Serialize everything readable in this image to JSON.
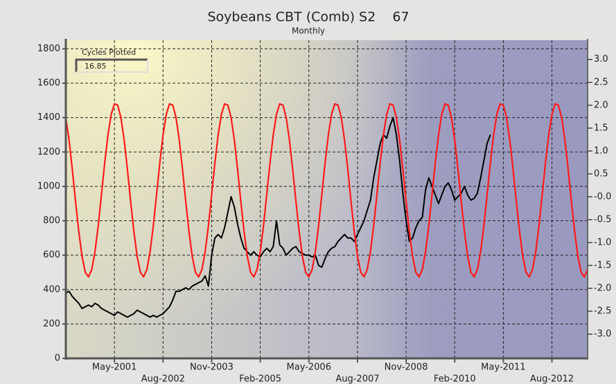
{
  "chart_data": {
    "type": "line",
    "title": "Soybeans CBT (Comb) S2    67",
    "subtitle": "Monthly",
    "cycles_box": {
      "label": "Cycles Plotted",
      "value": 16.85,
      "color": "#ff2020"
    },
    "grid": true,
    "xlim": [
      "2000-02",
      "2013-07"
    ],
    "xticks": [
      {
        "value": "2001-05",
        "label": "May-2001"
      },
      {
        "value": "2002-08",
        "label": "Aug-2002"
      },
      {
        "value": "2003-11",
        "label": "Nov-2003"
      },
      {
        "value": "2005-02",
        "label": "Feb-2005"
      },
      {
        "value": "2006-05",
        "label": "May-2006"
      },
      {
        "value": "2007-08",
        "label": "Aug-2007"
      },
      {
        "value": "2008-11",
        "label": "Nov-2008"
      },
      {
        "value": "2010-02",
        "label": "Feb-2010"
      },
      {
        "value": "2011-05",
        "label": "May-2011"
      },
      {
        "value": "2012-08",
        "label": "Aug-2012"
      }
    ],
    "ylim": [
      0,
      1850
    ],
    "yticks": [
      0,
      200,
      400,
      600,
      800,
      1000,
      1200,
      1400,
      1600,
      1800
    ],
    "y2lim": [
      -3.53,
      3.42
    ],
    "y2ticks": [
      {
        "value": 3,
        "label": "3.0"
      },
      2.5,
      {
        "value": 2,
        "label": "2.0"
      },
      1.5,
      {
        "value": 1,
        "label": "1.0"
      },
      0.5,
      {
        "value": 0,
        "label": "-0.0"
      },
      -0.5,
      {
        "value": -1,
        "label": "-1.0"
      },
      -1.5,
      {
        "value": -2,
        "label": "-2.0"
      },
      -2.5,
      {
        "value": -3,
        "label": "-3.0"
      }
    ],
    "x": [
      "2000-02",
      "2000-03",
      "2000-04",
      "2000-05",
      "2000-06",
      "2000-07",
      "2000-08",
      "2000-09",
      "2000-10",
      "2000-11",
      "2000-12",
      "2001-01",
      "2001-02",
      "2001-03",
      "2001-04",
      "2001-05",
      "2001-06",
      "2001-07",
      "2001-08",
      "2001-09",
      "2001-10",
      "2001-11",
      "2001-12",
      "2002-01",
      "2002-02",
      "2002-03",
      "2002-04",
      "2002-05",
      "2002-06",
      "2002-07",
      "2002-08",
      "2002-09",
      "2002-10",
      "2002-11",
      "2002-12",
      "2003-01",
      "2003-02",
      "2003-03",
      "2003-04",
      "2003-05",
      "2003-06",
      "2003-07",
      "2003-08",
      "2003-09",
      "2003-10",
      "2003-11",
      "2003-12",
      "2004-01",
      "2004-02",
      "2004-03",
      "2004-04",
      "2004-05",
      "2004-06",
      "2004-07",
      "2004-08",
      "2004-09",
      "2004-10",
      "2004-11",
      "2004-12",
      "2005-01",
      "2005-02",
      "2005-03",
      "2005-04",
      "2005-05",
      "2005-06",
      "2005-07",
      "2005-08",
      "2005-09",
      "2005-10",
      "2005-11",
      "2005-12",
      "2006-01",
      "2006-02",
      "2006-03",
      "2006-04",
      "2006-05",
      "2006-06",
      "2006-07",
      "2006-08",
      "2006-09",
      "2006-10",
      "2006-11",
      "2006-12",
      "2007-01",
      "2007-02",
      "2007-03",
      "2007-04",
      "2007-05",
      "2007-06",
      "2007-07",
      "2007-08",
      "2007-09",
      "2007-10",
      "2007-11",
      "2007-12",
      "2008-01",
      "2008-02",
      "2008-03",
      "2008-04",
      "2008-05",
      "2008-06",
      "2008-07",
      "2008-08",
      "2008-09",
      "2008-10",
      "2008-11",
      "2008-12",
      "2009-01",
      "2009-02",
      "2009-03",
      "2009-04",
      "2009-05",
      "2009-06",
      "2009-07",
      "2009-08",
      "2009-09",
      "2009-10",
      "2009-11",
      "2009-12",
      "2010-01",
      "2010-02",
      "2010-03",
      "2010-04",
      "2010-05",
      "2010-06",
      "2010-07",
      "2010-08",
      "2010-09",
      "2010-10",
      "2010-11",
      "2010-12",
      "2011-01",
      "2011-02",
      "2011-03",
      "2011-04",
      "2011-05",
      "2011-06",
      "2011-07",
      "2011-08",
      "2011-09",
      "2011-10",
      "2011-11",
      "2011-12",
      "2012-01",
      "2012-02",
      "2012-03",
      "2012-04",
      "2012-05",
      "2012-06",
      "2012-07",
      "2012-08",
      "2012-09",
      "2012-10",
      "2012-11",
      "2012-12",
      "2013-01",
      "2013-02",
      "2013-03",
      "2013-04",
      "2013-05",
      "2013-06",
      "2013-07"
    ],
    "series": [
      {
        "color": "#000000",
        "values": [
          380,
          390,
          360,
          340,
          320,
          290,
          300,
          310,
          300,
          320,
          310,
          290,
          280,
          270,
          260,
          250,
          270,
          260,
          250,
          240,
          250,
          260,
          280,
          270,
          260,
          250,
          240,
          250,
          240,
          250,
          260,
          280,
          300,
          340,
          390,
          390,
          400,
          410,
          400,
          420,
          430,
          440,
          450,
          480,
          420,
          600,
          700,
          720,
          700,
          760,
          850,
          940,
          880,
          780,
          700,
          640,
          620,
          600,
          620,
          600,
          590,
          620,
          640,
          620,
          650,
          800,
          660,
          640,
          600,
          620,
          640,
          650,
          620,
          610,
          600,
          600,
          590,
          600,
          540,
          530,
          580,
          620,
          640,
          650,
          680,
          700,
          720,
          700,
          700,
          680,
          720,
          760,
          800,
          860,
          920,
          1050,
          1150,
          1250,
          1300,
          1280,
          1350,
          1400,
          1300,
          1150,
          960,
          800,
          680,
          700,
          760,
          800,
          820,
          980,
          1050,
          1000,
          950,
          900,
          950,
          1000,
          1020,
          980,
          920,
          940,
          960,
          1000,
          950,
          920,
          930,
          960,
          1050,
          1150,
          1250,
          1300,
          null,
          null,
          null,
          null,
          null,
          null,
          null,
          null,
          null,
          null,
          null,
          null,
          null,
          null,
          null,
          null,
          null,
          null,
          null,
          null,
          null,
          null,
          null,
          null,
          null,
          null,
          null,
          null,
          null,
          null
        ]
      },
      {
        "color": "#ff1a1a",
        "axis": "y2",
        "values": [
          1.73,
          1.24,
          0.6,
          -0.1,
          -0.76,
          -1.3,
          -1.65,
          -1.75,
          -1.59,
          -1.2,
          -0.63,
          0.05,
          0.74,
          1.35,
          1.8,
          2.03,
          2.0,
          1.73,
          1.24,
          0.6,
          -0.1,
          -0.76,
          -1.3,
          -1.65,
          -1.75,
          -1.59,
          -1.2,
          -0.63,
          0.05,
          0.74,
          1.35,
          1.8,
          2.03,
          2.0,
          1.73,
          1.24,
          0.6,
          -0.1,
          -0.76,
          -1.3,
          -1.65,
          -1.75,
          -1.59,
          -1.2,
          -0.63,
          0.05,
          0.74,
          1.35,
          1.8,
          2.03,
          2.0,
          1.73,
          1.24,
          0.6,
          -0.1,
          -0.76,
          -1.3,
          -1.65,
          -1.75,
          -1.59,
          -1.2,
          -0.63,
          0.05,
          0.74,
          1.35,
          1.8,
          2.03,
          2.0,
          1.73,
          1.24,
          0.6,
          -0.1,
          -0.76,
          -1.3,
          -1.65,
          -1.75,
          -1.59,
          -1.2,
          -0.63,
          0.05,
          0.74,
          1.35,
          1.8,
          2.03,
          2.0,
          1.73,
          1.24,
          0.6,
          -0.1,
          -0.76,
          -1.3,
          -1.65,
          -1.75,
          -1.59,
          -1.2,
          -0.63,
          0.05,
          0.74,
          1.35,
          1.8,
          2.03,
          2.0,
          1.73,
          1.24,
          0.6,
          -0.1,
          -0.76,
          -1.3,
          -1.65,
          -1.75,
          -1.59,
          -1.2,
          -0.63,
          0.05,
          0.74,
          1.35,
          1.8,
          2.03,
          2.0,
          1.73,
          1.24,
          0.6,
          -0.1,
          -0.76,
          -1.3,
          -1.65,
          -1.75,
          -1.59,
          -1.2,
          -0.63,
          0.05,
          0.74,
          1.35,
          1.8,
          2.03,
          2.0,
          1.73,
          1.24,
          0.6,
          -0.1,
          -0.76,
          -1.3,
          -1.65,
          -1.75,
          -1.59,
          -1.2,
          -0.63,
          0.05,
          0.74,
          1.35,
          1.8,
          2.03,
          2.0,
          1.73,
          1.24,
          0.6,
          -0.1,
          -0.76,
          -1.3,
          -1.65,
          -1.75,
          -1.59
        ]
      }
    ]
  }
}
